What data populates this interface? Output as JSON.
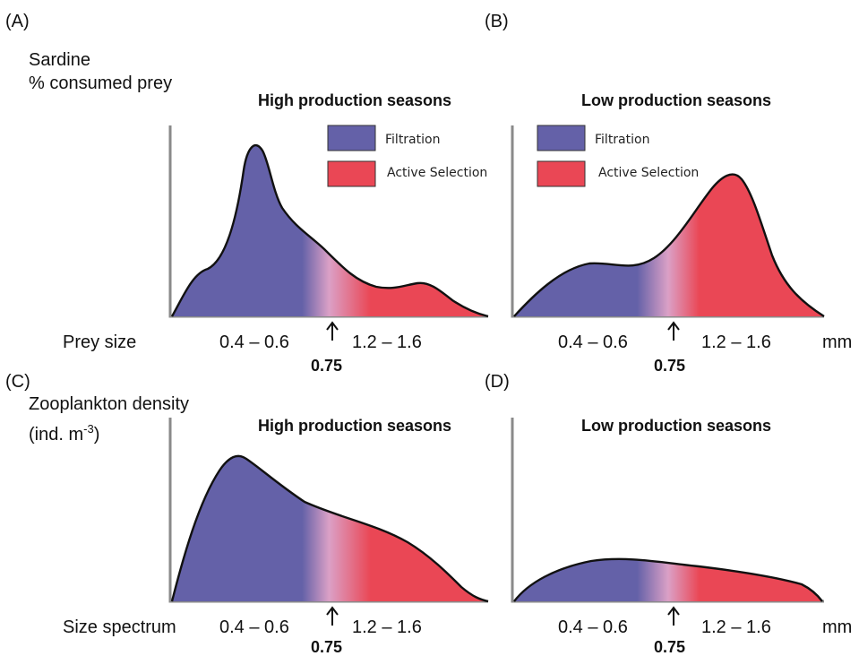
{
  "panels": {
    "A": {
      "letter": "(A)",
      "title": "High production seasons",
      "y_label_line1": "Sardine",
      "y_label_line2": "% consumed prey",
      "x_row_label": "Prey size",
      "tick_left": "0.4 – 0.6",
      "tick_right": "1.2 – 1.6",
      "threshold": "0.75",
      "unit": ""
    },
    "B": {
      "letter": "(B)",
      "title": "Low production seasons",
      "tick_left": "0.4 – 0.6",
      "tick_right": "1.2 – 1.6",
      "threshold": "0.75",
      "unit": "mm"
    },
    "C": {
      "letter": "(C)",
      "title": "High production seasons",
      "y_label_line1": "Zooplankton density",
      "y_label_line2_prefix": "(ind. m",
      "y_label_line2_sup": "-3",
      "y_label_line2_suffix": ")",
      "x_row_label": "Size spectrum",
      "tick_left": "0.4 – 0.6",
      "tick_right": "1.2 – 1.6",
      "threshold": "0.75",
      "unit": ""
    },
    "D": {
      "letter": "(D)",
      "title": "Low production seasons",
      "tick_left": "0.4 – 0.6",
      "tick_right": "1.2 – 1.6",
      "threshold": "0.75",
      "unit": "mm"
    }
  },
  "legend": {
    "filtration": "Filtration",
    "active_selection": "Active Selection"
  },
  "colors": {
    "filtration": "#6461a8",
    "transition": "#dba0c6",
    "active_selection": "#ea4755",
    "axis": "#8a8a8a"
  }
}
